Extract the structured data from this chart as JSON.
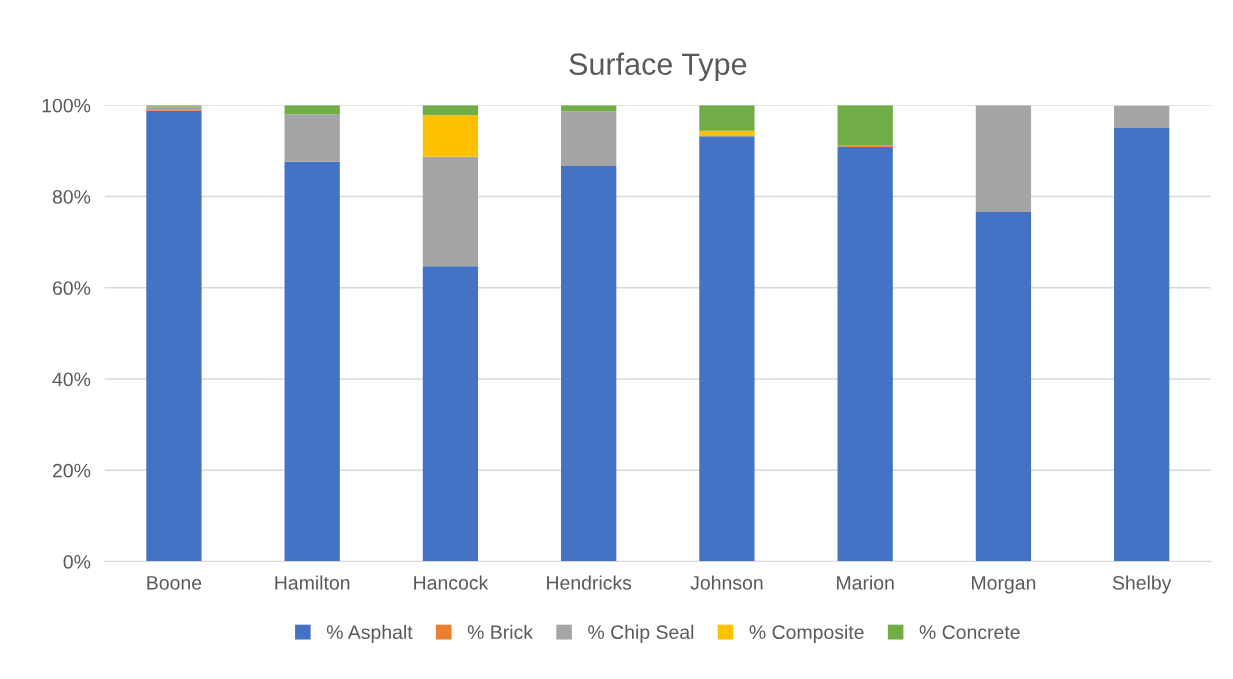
{
  "chart_data": {
    "type": "bar",
    "title": "Surface Type",
    "stacked": true,
    "categories": [
      "Boone",
      "Hamilton",
      "Hancock",
      "Hendricks",
      "Johnson",
      "Marion",
      "Morgan",
      "Shelby"
    ],
    "series": [
      {
        "name": "% Asphalt",
        "color": "#4472c4",
        "values": [
          98.8,
          87.6,
          64.7,
          86.7,
          93.2,
          90.9,
          76.6,
          95.0
        ]
      },
      {
        "name": "% Brick",
        "color": "#ed7d31",
        "values": [
          0.3,
          0,
          0,
          0,
          0,
          0.2,
          0,
          0
        ]
      },
      {
        "name": "% Chip Seal",
        "color": "#a5a5a5",
        "values": [
          0.6,
          10.4,
          24.0,
          12.0,
          0,
          0,
          23.4,
          4.9
        ]
      },
      {
        "name": "% Composite",
        "color": "#ffc000",
        "values": [
          0,
          0,
          9.1,
          0,
          1.2,
          0,
          0,
          0
        ]
      },
      {
        "name": "% Concrete",
        "color": "#70ad47",
        "values": [
          0.3,
          2.0,
          2.2,
          1.3,
          5.6,
          8.9,
          0,
          null
        ]
      }
    ],
    "ylim": [
      0,
      100
    ],
    "yticks": [
      {
        "value": 0,
        "label": "0%"
      },
      {
        "value": 20,
        "label": "20%"
      },
      {
        "value": 40,
        "label": "40%"
      },
      {
        "value": 60,
        "label": "60%"
      },
      {
        "value": 80,
        "label": "80%"
      },
      {
        "value": 100,
        "label": "100%"
      }
    ],
    "grid": "y",
    "legend": "bottom"
  }
}
